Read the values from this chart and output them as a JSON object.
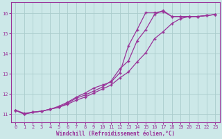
{
  "title": "",
  "xlabel": "Windchill (Refroidissement éolien,°C)",
  "ylabel": "",
  "bg_color": "#cce8e8",
  "grid_color": "#aacccc",
  "line_color": "#993399",
  "xlim": [
    -0.5,
    23.5
  ],
  "ylim": [
    10.6,
    16.55
  ],
  "yticks": [
    11,
    12,
    13,
    14,
    15,
    16
  ],
  "xticks": [
    0,
    1,
    2,
    3,
    4,
    5,
    6,
    7,
    8,
    9,
    10,
    11,
    12,
    13,
    14,
    15,
    16,
    17,
    18,
    19,
    20,
    21,
    22,
    23
  ],
  "series": [
    [
      11.2,
      11.0,
      11.1,
      11.15,
      11.25,
      11.4,
      11.6,
      11.85,
      12.05,
      12.3,
      12.45,
      12.6,
      13.05,
      14.4,
      15.2,
      16.05,
      16.05,
      16.1,
      15.85,
      15.85,
      15.85,
      15.85,
      15.9,
      15.95
    ],
    [
      11.2,
      11.0,
      11.1,
      11.15,
      11.25,
      11.35,
      11.55,
      11.8,
      11.95,
      12.15,
      12.35,
      12.65,
      13.25,
      13.65,
      14.65,
      15.2,
      15.95,
      16.15,
      15.85,
      15.85,
      15.85,
      15.85,
      15.9,
      15.95
    ],
    [
      11.2,
      11.05,
      11.1,
      11.15,
      11.25,
      11.35,
      11.5,
      11.7,
      11.85,
      12.05,
      12.25,
      12.45,
      12.8,
      13.1,
      13.6,
      14.05,
      14.75,
      15.1,
      15.5,
      15.75,
      15.85,
      15.85,
      15.9,
      15.95
    ]
  ],
  "xlabel_fontsize": 5.5,
  "ylabel_fontsize": 5.5,
  "tick_fontsize": 5.5,
  "xtick_fontsize": 4.5
}
